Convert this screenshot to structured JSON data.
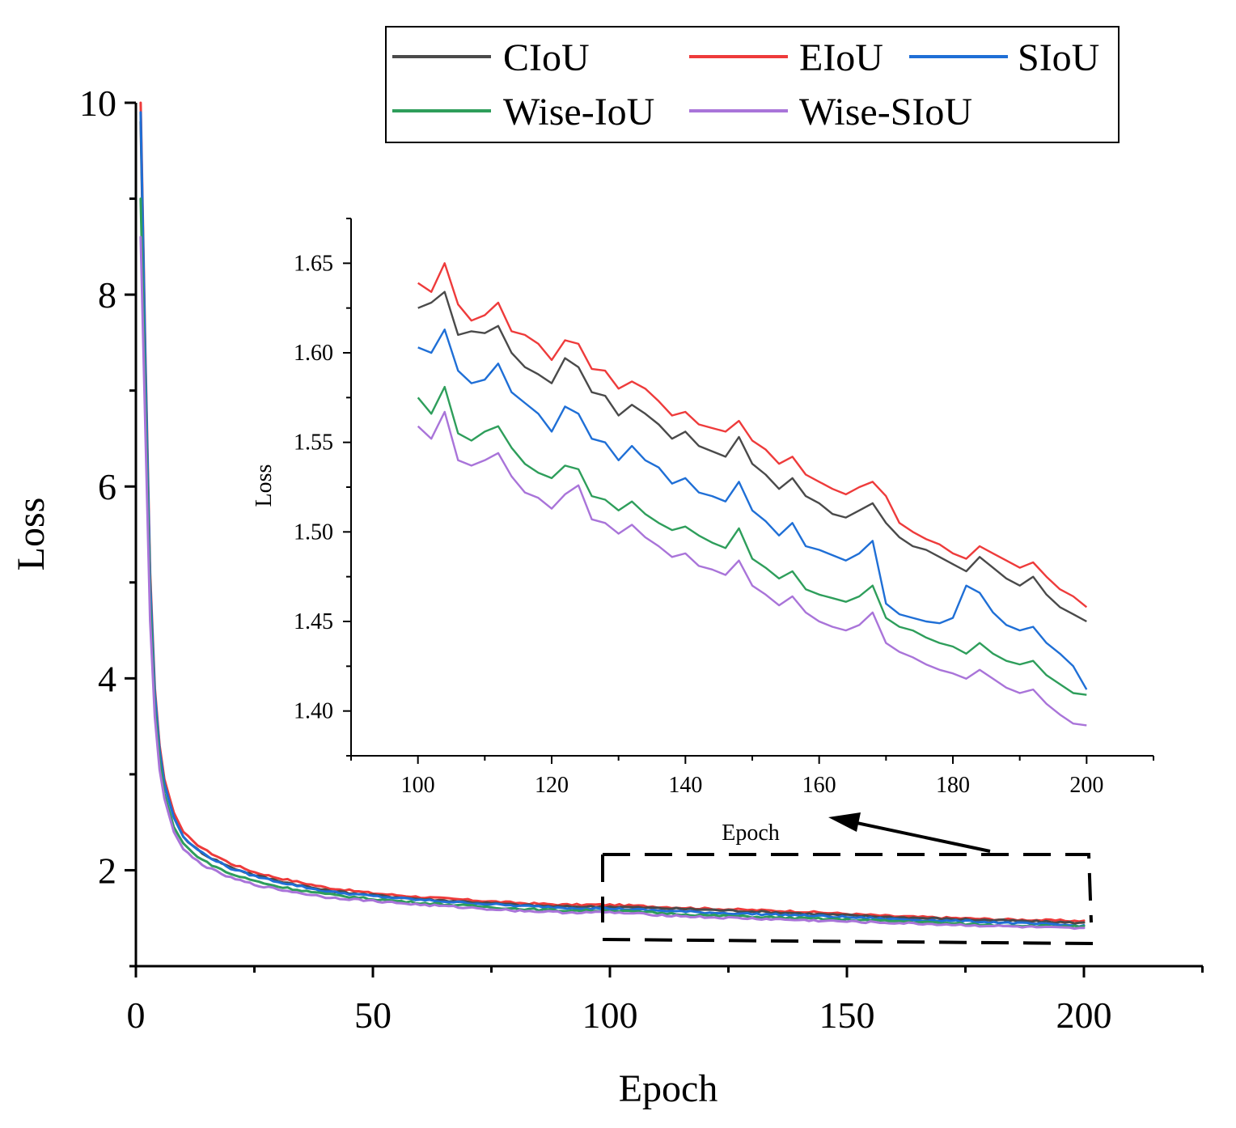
{
  "chart_data": [
    {
      "type": "line",
      "title": "",
      "xlabel": "Epoch",
      "ylabel": "Loss",
      "xlim": [
        0,
        225
      ],
      "ylim": [
        1,
        10
      ],
      "xticks": [
        0,
        50,
        100,
        150,
        200
      ],
      "yticks": [
        2,
        4,
        6,
        8,
        10
      ],
      "legend_position": "top",
      "colors": {
        "CIoU": "#4a4a4a",
        "EIoU": "#ee3b3b",
        "SIoU": "#1f6fd6",
        "Wise-IoU": "#2e9e5b",
        "Wise-SIoU": "#a974d9"
      },
      "series": [
        {
          "name": "CIoU",
          "end_value": 1.45,
          "x": [
            1,
            2,
            3,
            4,
            5,
            6,
            8,
            10,
            12,
            15,
            20,
            25,
            30,
            40,
            50,
            60,
            70,
            80,
            90,
            100,
            120,
            140,
            160,
            180,
            200
          ],
          "values": [
            9.8,
            7.2,
            5.0,
            3.8,
            3.25,
            2.9,
            2.55,
            2.35,
            2.25,
            2.15,
            2.03,
            1.95,
            1.89,
            1.79,
            1.74,
            1.7,
            1.67,
            1.64,
            1.62,
            1.62,
            1.59,
            1.55,
            1.51,
            1.48,
            1.45
          ]
        },
        {
          "name": "EIoU",
          "end_value": 1.47,
          "x": [
            1,
            2,
            3,
            4,
            5,
            6,
            8,
            10,
            12,
            15,
            20,
            25,
            30,
            40,
            50,
            60,
            70,
            80,
            90,
            100,
            120,
            140,
            160,
            180,
            200
          ],
          "values": [
            10.0,
            7.4,
            5.1,
            3.9,
            3.3,
            2.95,
            2.6,
            2.4,
            2.3,
            2.2,
            2.07,
            1.98,
            1.92,
            1.82,
            1.76,
            1.72,
            1.69,
            1.66,
            1.64,
            1.64,
            1.6,
            1.57,
            1.52,
            1.49,
            1.47
          ]
        },
        {
          "name": "SIoU",
          "end_value": 1.42,
          "x": [
            1,
            2,
            3,
            4,
            5,
            6,
            8,
            10,
            12,
            15,
            20,
            25,
            30,
            40,
            50,
            60,
            70,
            80,
            90,
            100,
            120,
            140,
            160,
            180,
            200
          ],
          "values": [
            9.9,
            7.3,
            5.0,
            3.85,
            3.25,
            2.9,
            2.55,
            2.35,
            2.25,
            2.15,
            2.02,
            1.94,
            1.88,
            1.78,
            1.73,
            1.69,
            1.66,
            1.63,
            1.61,
            1.6,
            1.56,
            1.53,
            1.49,
            1.46,
            1.42
          ]
        },
        {
          "name": "Wise-IoU",
          "end_value": 1.41,
          "x": [
            1,
            2,
            3,
            4,
            5,
            6,
            8,
            10,
            12,
            15,
            20,
            25,
            30,
            40,
            50,
            60,
            70,
            80,
            90,
            100,
            120,
            140,
            160,
            180,
            200
          ],
          "values": [
            9.0,
            6.9,
            4.8,
            3.7,
            3.15,
            2.8,
            2.45,
            2.28,
            2.18,
            2.08,
            1.96,
            1.89,
            1.83,
            1.75,
            1.7,
            1.66,
            1.63,
            1.6,
            1.58,
            1.58,
            1.53,
            1.5,
            1.47,
            1.43,
            1.41
          ]
        },
        {
          "name": "Wise-SIoU",
          "end_value": 1.39,
          "x": [
            1,
            2,
            3,
            4,
            5,
            6,
            8,
            10,
            12,
            15,
            20,
            25,
            30,
            40,
            50,
            60,
            70,
            80,
            90,
            100,
            120,
            140,
            160,
            180,
            200
          ],
          "values": [
            8.6,
            6.6,
            4.6,
            3.6,
            3.05,
            2.75,
            2.4,
            2.22,
            2.13,
            2.03,
            1.92,
            1.85,
            1.8,
            1.72,
            1.68,
            1.64,
            1.61,
            1.58,
            1.56,
            1.56,
            1.51,
            1.48,
            1.45,
            1.42,
            1.39
          ]
        }
      ],
      "annotation": "zoom box over epochs 100-200"
    },
    {
      "type": "line",
      "title": "",
      "xlabel": "Epoch",
      "ylabel": "Loss",
      "xlim": [
        90,
        210
      ],
      "ylim": [
        1.375,
        1.675
      ],
      "xticks": [
        100,
        120,
        140,
        160,
        180,
        200
      ],
      "yticks": [
        1.4,
        1.45,
        1.5,
        1.55,
        1.6,
        1.65
      ],
      "x": [
        100,
        102,
        104,
        106,
        108,
        110,
        112,
        114,
        116,
        118,
        120,
        122,
        124,
        126,
        128,
        130,
        132,
        134,
        136,
        138,
        140,
        142,
        144,
        146,
        148,
        150,
        152,
        154,
        156,
        158,
        160,
        162,
        164,
        166,
        168,
        170,
        172,
        174,
        176,
        178,
        180,
        182,
        184,
        186,
        188,
        190,
        192,
        194,
        196,
        198,
        200
      ],
      "series": [
        {
          "name": "CIoU",
          "values": [
            1.625,
            1.628,
            1.634,
            1.61,
            1.612,
            1.611,
            1.615,
            1.6,
            1.592,
            1.588,
            1.583,
            1.597,
            1.592,
            1.578,
            1.576,
            1.565,
            1.571,
            1.566,
            1.56,
            1.552,
            1.556,
            1.548,
            1.545,
            1.542,
            1.553,
            1.538,
            1.532,
            1.524,
            1.53,
            1.52,
            1.516,
            1.51,
            1.508,
            1.512,
            1.516,
            1.505,
            1.497,
            1.492,
            1.49,
            1.486,
            1.482,
            1.478,
            1.486,
            1.48,
            1.474,
            1.47,
            1.475,
            1.465,
            1.458,
            1.454,
            1.45
          ]
        },
        {
          "name": "EIoU",
          "values": [
            1.639,
            1.634,
            1.65,
            1.627,
            1.618,
            1.621,
            1.628,
            1.612,
            1.61,
            1.605,
            1.596,
            1.607,
            1.605,
            1.591,
            1.59,
            1.58,
            1.584,
            1.58,
            1.573,
            1.565,
            1.567,
            1.56,
            1.558,
            1.556,
            1.562,
            1.551,
            1.546,
            1.538,
            1.542,
            1.532,
            1.528,
            1.524,
            1.521,
            1.525,
            1.528,
            1.52,
            1.505,
            1.5,
            1.496,
            1.493,
            1.488,
            1.485,
            1.492,
            1.488,
            1.484,
            1.48,
            1.483,
            1.475,
            1.468,
            1.464,
            1.458
          ]
        },
        {
          "name": "SIoU",
          "values": [
            1.603,
            1.6,
            1.613,
            1.59,
            1.583,
            1.585,
            1.594,
            1.578,
            1.572,
            1.566,
            1.556,
            1.57,
            1.566,
            1.552,
            1.55,
            1.54,
            1.548,
            1.54,
            1.536,
            1.527,
            1.53,
            1.522,
            1.52,
            1.517,
            1.528,
            1.512,
            1.506,
            1.498,
            1.505,
            1.492,
            1.49,
            1.487,
            1.484,
            1.488,
            1.495,
            1.46,
            1.454,
            1.452,
            1.45,
            1.449,
            1.452,
            1.47,
            1.466,
            1.455,
            1.448,
            1.445,
            1.447,
            1.438,
            1.432,
            1.425,
            1.412
          ]
        },
        {
          "name": "Wise-IoU",
          "values": [
            1.575,
            1.566,
            1.581,
            1.555,
            1.551,
            1.556,
            1.559,
            1.547,
            1.538,
            1.533,
            1.53,
            1.537,
            1.535,
            1.52,
            1.518,
            1.512,
            1.517,
            1.51,
            1.505,
            1.501,
            1.503,
            1.498,
            1.494,
            1.491,
            1.502,
            1.485,
            1.48,
            1.474,
            1.478,
            1.468,
            1.465,
            1.463,
            1.461,
            1.464,
            1.47,
            1.452,
            1.447,
            1.445,
            1.441,
            1.438,
            1.436,
            1.432,
            1.438,
            1.432,
            1.428,
            1.426,
            1.428,
            1.42,
            1.415,
            1.41,
            1.409
          ]
        },
        {
          "name": "Wise-SIoU",
          "values": [
            1.559,
            1.552,
            1.567,
            1.54,
            1.537,
            1.54,
            1.544,
            1.531,
            1.522,
            1.519,
            1.513,
            1.521,
            1.526,
            1.507,
            1.505,
            1.499,
            1.504,
            1.497,
            1.492,
            1.486,
            1.488,
            1.481,
            1.479,
            1.476,
            1.484,
            1.47,
            1.465,
            1.459,
            1.464,
            1.455,
            1.45,
            1.447,
            1.445,
            1.448,
            1.455,
            1.438,
            1.433,
            1.43,
            1.426,
            1.423,
            1.421,
            1.418,
            1.423,
            1.418,
            1.413,
            1.41,
            1.412,
            1.404,
            1.398,
            1.393,
            1.392
          ]
        }
      ]
    }
  ],
  "labels": {
    "main_xlabel": "Epoch",
    "main_ylabel": "Loss",
    "inset_xlabel": "Epoch",
    "inset_ylabel": "Loss",
    "main_xticks": [
      "0",
      "50",
      "100",
      "150",
      "200"
    ],
    "main_yticks": [
      "2",
      "4",
      "6",
      "8",
      "10"
    ],
    "inset_xticks": [
      "100",
      "120",
      "140",
      "160",
      "180",
      "200"
    ],
    "inset_yticks": [
      "1.40",
      "1.45",
      "1.50",
      "1.55",
      "1.60",
      "1.65"
    ],
    "legend": [
      "CIoU",
      "EIoU",
      "SIoU",
      "Wise-IoU",
      "Wise-SIoU"
    ]
  }
}
